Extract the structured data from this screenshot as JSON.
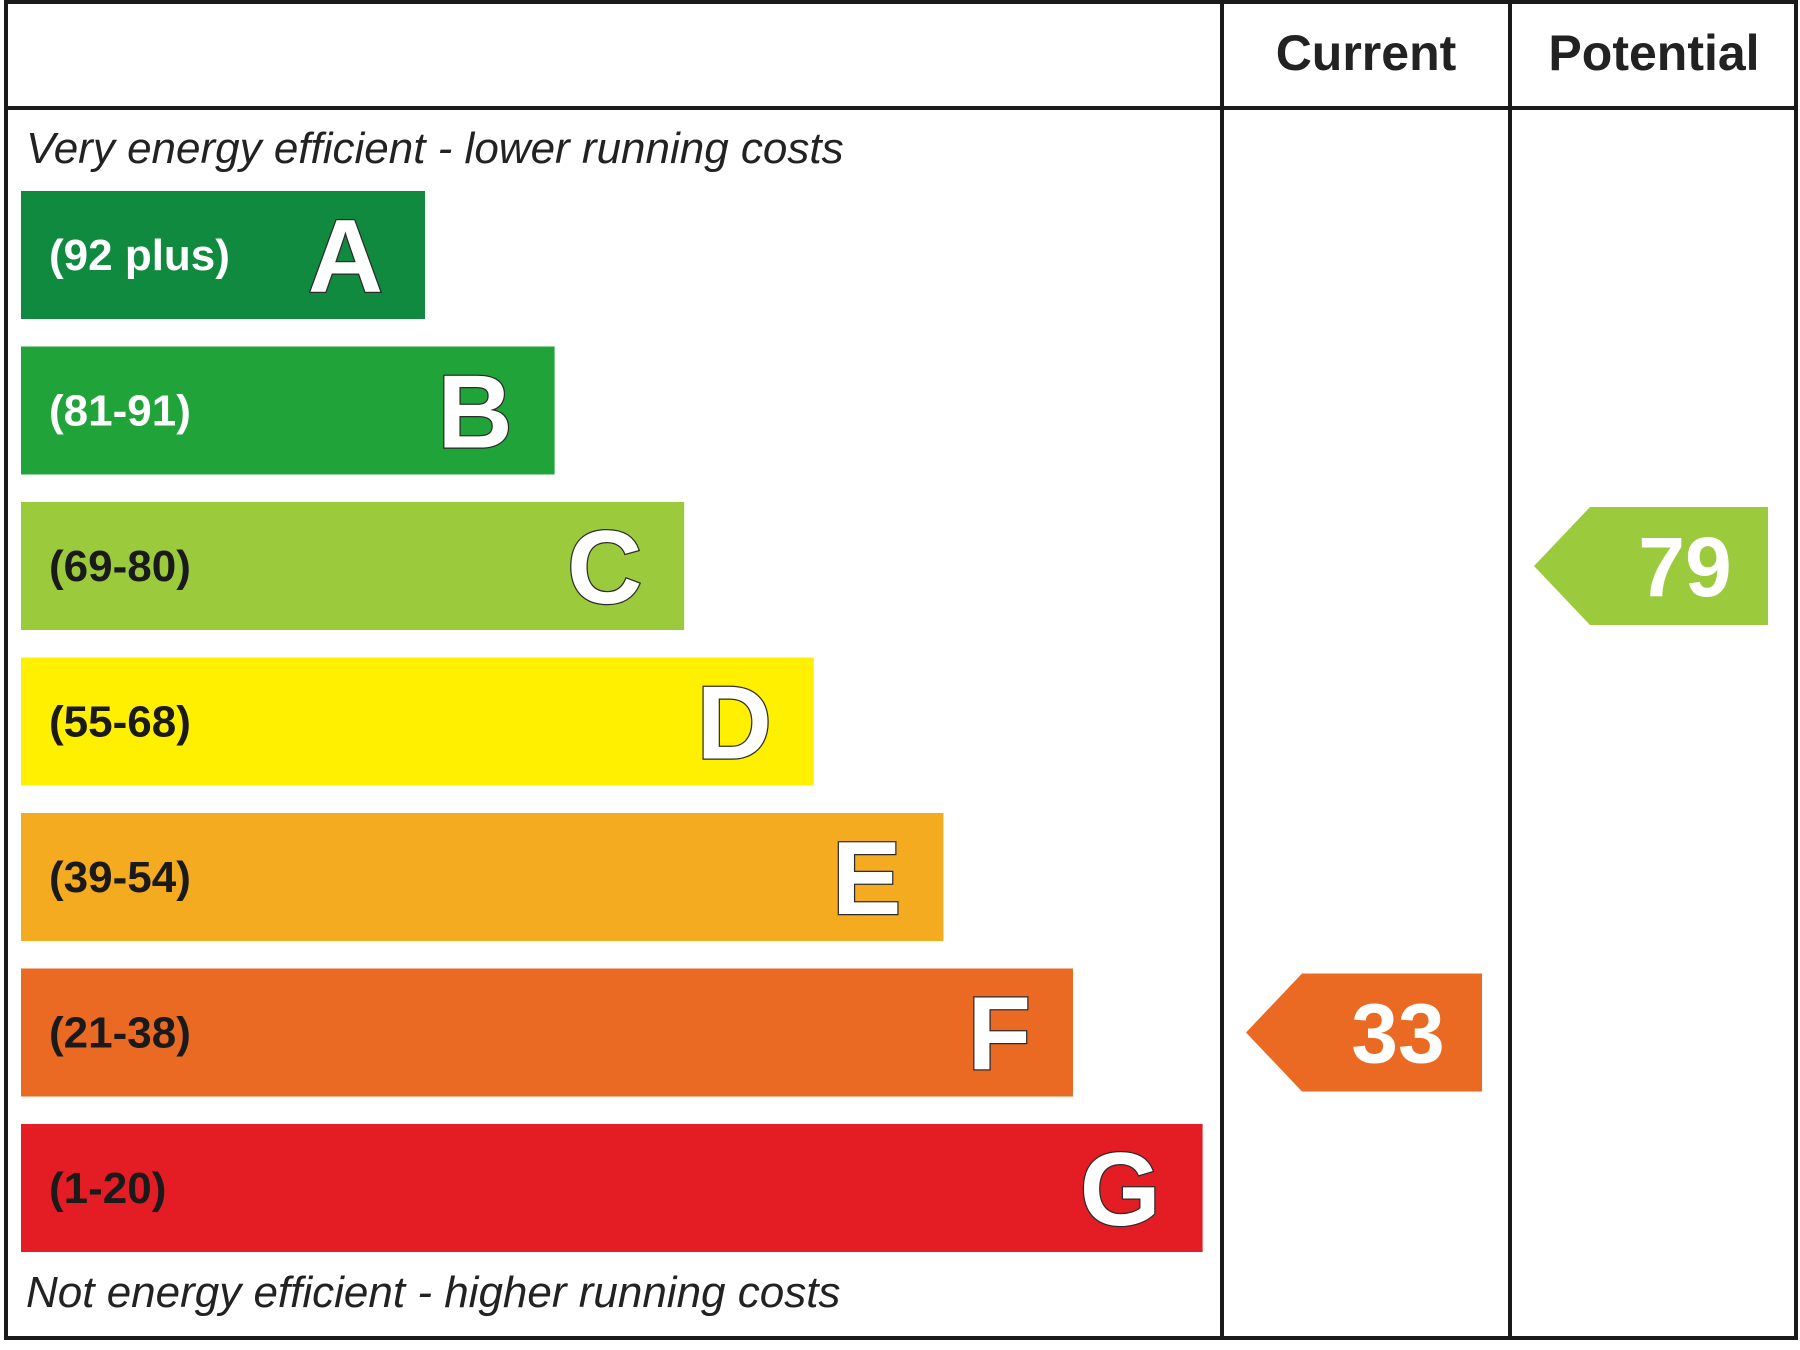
{
  "chart_data": {
    "type": "bar",
    "headers": {
      "current": "Current",
      "potential": "Potential"
    },
    "top_caption": "Very energy efficient - lower running costs",
    "bottom_caption": "Not energy efficient - higher running costs",
    "bands": [
      {
        "letter": "A",
        "range": "(92 plus)",
        "color": "#0f8a3f",
        "text_color": "#ffffff"
      },
      {
        "letter": "B",
        "range": "(81-91)",
        "color": "#20a43a",
        "text_color": "#ffffff"
      },
      {
        "letter": "C",
        "range": "(69-80)",
        "color": "#9bcb3c",
        "text_color": "#1a1a1a"
      },
      {
        "letter": "D",
        "range": "(55-68)",
        "color": "#fff000",
        "text_color": "#1a1a1a"
      },
      {
        "letter": "E",
        "range": "(39-54)",
        "color": "#f5ab1f",
        "text_color": "#1a1a1a"
      },
      {
        "letter": "F",
        "range": "(21-38)",
        "color": "#ea6a24",
        "text_color": "#1a1a1a"
      },
      {
        "letter": "G",
        "range": "(1-20)",
        "color": "#e31d23",
        "text_color": "#1a1a1a"
      }
    ],
    "current": {
      "value": 33,
      "band": "F",
      "color": "#ea6a24"
    },
    "potential": {
      "value": 79,
      "band": "C",
      "color": "#9bcb3c"
    }
  }
}
